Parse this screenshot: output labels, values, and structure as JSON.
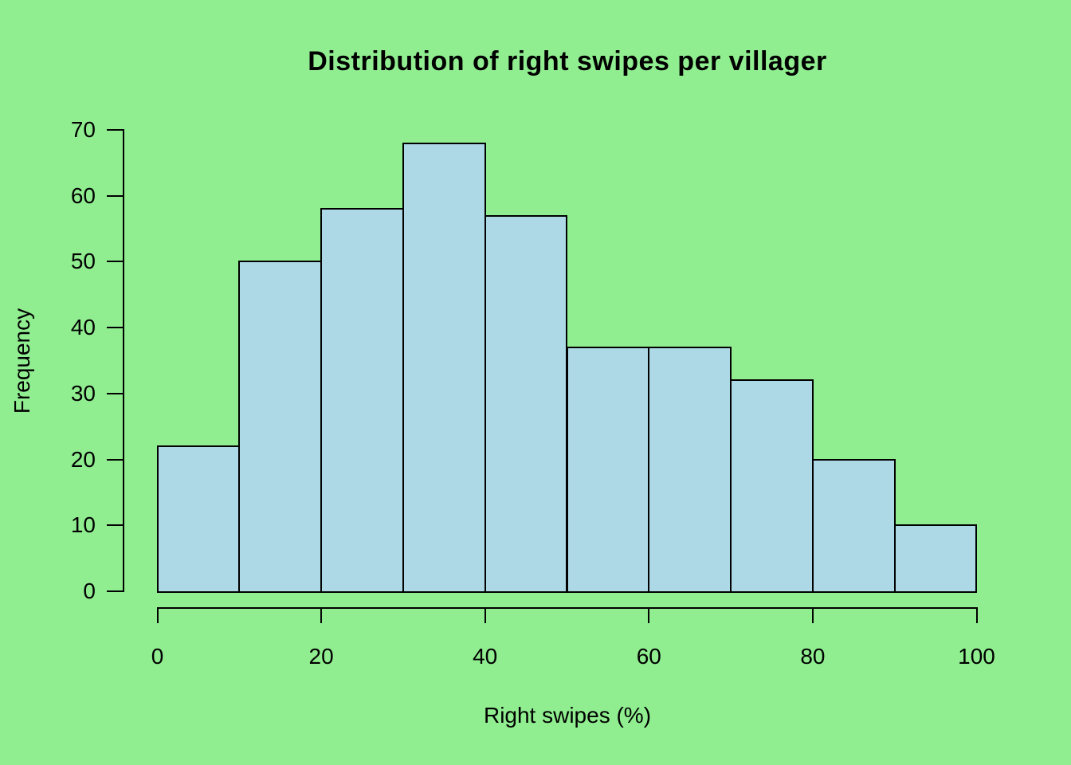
{
  "chart_data": {
    "type": "bar",
    "subtype": "histogram",
    "title": "Distribution of right swipes per villager",
    "xlabel": "Right swipes (%)",
    "ylabel": "Frequency",
    "bin_edges": [
      0,
      10,
      20,
      30,
      40,
      50,
      60,
      70,
      80,
      90,
      100
    ],
    "values": [
      22,
      50,
      58,
      68,
      57,
      37,
      37,
      32,
      20,
      10
    ],
    "xticks": [
      0,
      20,
      40,
      60,
      80,
      100
    ],
    "yticks": [
      0,
      10,
      20,
      30,
      40,
      50,
      60,
      70
    ],
    "xlim": [
      0,
      100
    ],
    "ylim": [
      0,
      70
    ],
    "grid": false,
    "legend_position": "none",
    "colors": {
      "background": "#90EE90",
      "bar_fill": "#ADD8E6",
      "bar_border": "#000000",
      "axis": "#000000",
      "text": "#000000"
    }
  }
}
